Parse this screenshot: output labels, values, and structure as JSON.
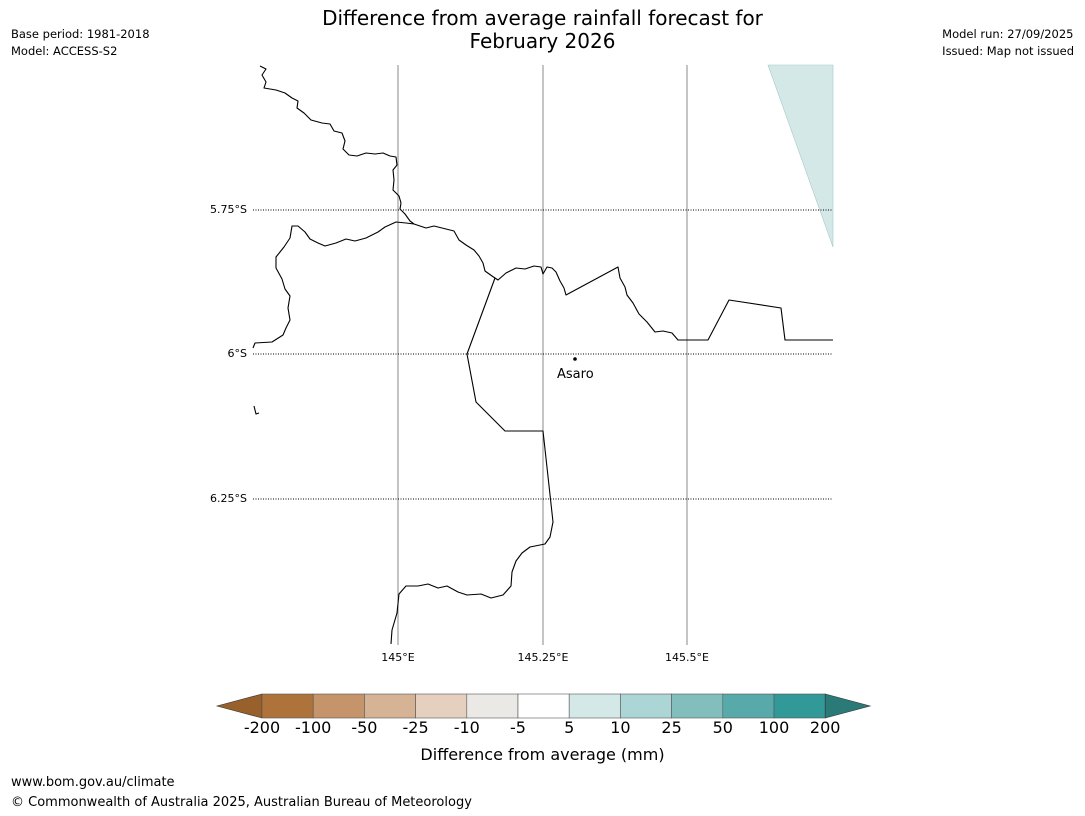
{
  "header": {
    "title_line1": "Difference from average rainfall forecast for",
    "title_line2": "February 2026",
    "base_period": "Base period: 1981-2018",
    "model": "Model: ACCESS-S2",
    "model_run": "Model run: 27/09/2025",
    "issued": "Issued: Map not issued"
  },
  "map": {
    "lat_labels": [
      "5.75°S",
      "6°S",
      "6.25°S"
    ],
    "lon_labels": [
      "145°E",
      "145.25°E",
      "145.5°E"
    ],
    "place_name": "Asaro",
    "place_lat": -6.006,
    "place_lon": 145.31
  },
  "legend": {
    "title": "Difference from average (mm)",
    "tick_labels": [
      "-200",
      "-100",
      "-50",
      "-25",
      "-10",
      "-5",
      "5",
      "10",
      "25",
      "50",
      "100",
      "200"
    ],
    "colors": {
      "below_min": "#98602b",
      "bins": [
        "#ae733a",
        "#c5946a",
        "#d5b394",
        "#e5d0bf",
        "#ebe9e6",
        "#ffffff",
        "#d5e8e8",
        "#acd6d5",
        "#82bfbc",
        "#58aaaa",
        "#319997"
      ],
      "above_max": "#2a7a78"
    }
  },
  "footer": {
    "url": "www.bom.gov.au/climate",
    "copyright": "© Commonwealth of Australia 2025, Australian Bureau of Meteorology"
  }
}
